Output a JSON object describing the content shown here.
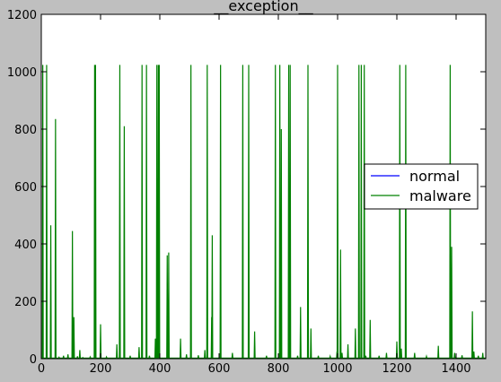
{
  "chart_data": {
    "type": "line",
    "title": "__exception__",
    "xlabel": "",
    "ylabel": "",
    "xlim": [
      0,
      1500
    ],
    "ylim": [
      0,
      1200
    ],
    "xticks": [
      0,
      200,
      400,
      600,
      800,
      1000,
      1200,
      1400
    ],
    "yticks": [
      0,
      200,
      400,
      600,
      800,
      1000,
      1200
    ],
    "grid": false,
    "legend": {
      "position": "center-right",
      "entries": [
        "normal",
        "malware"
      ]
    },
    "series": [
      {
        "name": "normal",
        "color": "#0000ff",
        "x": [
          0,
          1500
        ],
        "y": [
          1,
          1
        ]
      },
      {
        "name": "malware",
        "color": "#008000",
        "spikes": [
          [
            5,
            1024
          ],
          [
            18,
            1024
          ],
          [
            32,
            465
          ],
          [
            48,
            835
          ],
          [
            60,
            5
          ],
          [
            75,
            10
          ],
          [
            90,
            15
          ],
          [
            105,
            445
          ],
          [
            110,
            145
          ],
          [
            122,
            8
          ],
          [
            130,
            30
          ],
          [
            140,
            4
          ],
          [
            165,
            6
          ],
          [
            180,
            1024
          ],
          [
            183,
            1024
          ],
          [
            200,
            120
          ],
          [
            220,
            6
          ],
          [
            255,
            50
          ],
          [
            265,
            1024
          ],
          [
            280,
            810
          ],
          [
            300,
            10
          ],
          [
            330,
            40
          ],
          [
            340,
            1024
          ],
          [
            355,
            1024
          ],
          [
            365,
            10
          ],
          [
            385,
            70
          ],
          [
            390,
            1024
          ],
          [
            395,
            1024
          ],
          [
            398,
            1024
          ],
          [
            425,
            360
          ],
          [
            430,
            370
          ],
          [
            470,
            70
          ],
          [
            490,
            15
          ],
          [
            505,
            1024
          ],
          [
            530,
            12
          ],
          [
            552,
            30
          ],
          [
            560,
            1024
          ],
          [
            575,
            145
          ],
          [
            577,
            430
          ],
          [
            605,
            1024
          ],
          [
            645,
            20
          ],
          [
            680,
            1024
          ],
          [
            700,
            1024
          ],
          [
            720,
            95
          ],
          [
            760,
            10
          ],
          [
            790,
            1024
          ],
          [
            805,
            1024
          ],
          [
            810,
            800
          ],
          [
            835,
            1024
          ],
          [
            840,
            1024
          ],
          [
            865,
            10
          ],
          [
            875,
            180
          ],
          [
            900,
            1024
          ],
          [
            910,
            105
          ],
          [
            935,
            10
          ],
          [
            975,
            8
          ],
          [
            998,
            25
          ],
          [
            1000,
            1024
          ],
          [
            1010,
            380
          ],
          [
            1015,
            20
          ],
          [
            1035,
            50
          ],
          [
            1060,
            105
          ],
          [
            1072,
            1024
          ],
          [
            1080,
            1024
          ],
          [
            1090,
            1024
          ],
          [
            1095,
            10
          ],
          [
            1110,
            135
          ],
          [
            1140,
            10
          ],
          [
            1165,
            20
          ],
          [
            1200,
            60
          ],
          [
            1210,
            1024
          ],
          [
            1215,
            35
          ],
          [
            1230,
            1024
          ],
          [
            1260,
            20
          ],
          [
            1300,
            8
          ],
          [
            1340,
            45
          ],
          [
            1380,
            1024
          ],
          [
            1385,
            390
          ],
          [
            1395,
            20
          ],
          [
            1420,
            12
          ],
          [
            1455,
            165
          ],
          [
            1460,
            25
          ],
          [
            1475,
            10
          ],
          [
            1490,
            20
          ]
        ]
      }
    ]
  }
}
